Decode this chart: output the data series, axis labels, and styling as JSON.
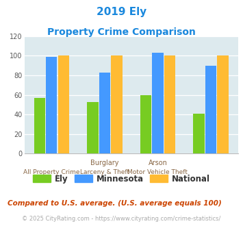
{
  "title_line1": "2019 Ely",
  "title_line2": "Property Crime Comparison",
  "ely_values": [
    57,
    53,
    60,
    41
  ],
  "minnesota_values": [
    99,
    83,
    103,
    90
  ],
  "national_values": [
    100,
    100,
    100,
    100
  ],
  "ely_color": "#77cc22",
  "minnesota_color": "#4499ff",
  "national_color": "#ffbb33",
  "ylim": [
    0,
    120
  ],
  "yticks": [
    0,
    20,
    40,
    60,
    80,
    100,
    120
  ],
  "legend_labels": [
    "Ely",
    "Minnesota",
    "National"
  ],
  "top_xlabels": [
    "",
    "Burglary",
    "Arson",
    ""
  ],
  "bot_xlabels": [
    "All Property Crime",
    "Larceny & Theft",
    "Motor Vehicle Theft",
    ""
  ],
  "footnote1": "Compared to U.S. average. (U.S. average equals 100)",
  "footnote2": "© 2025 CityRating.com - https://www.cityrating.com/crime-statistics/",
  "bg_color": "#ddeaee",
  "title_color": "#1a88dd",
  "xlabel_color": "#886644",
  "ytick_color": "#555555",
  "footnote1_color": "#cc4400",
  "footnote2_color": "#aaaaaa"
}
